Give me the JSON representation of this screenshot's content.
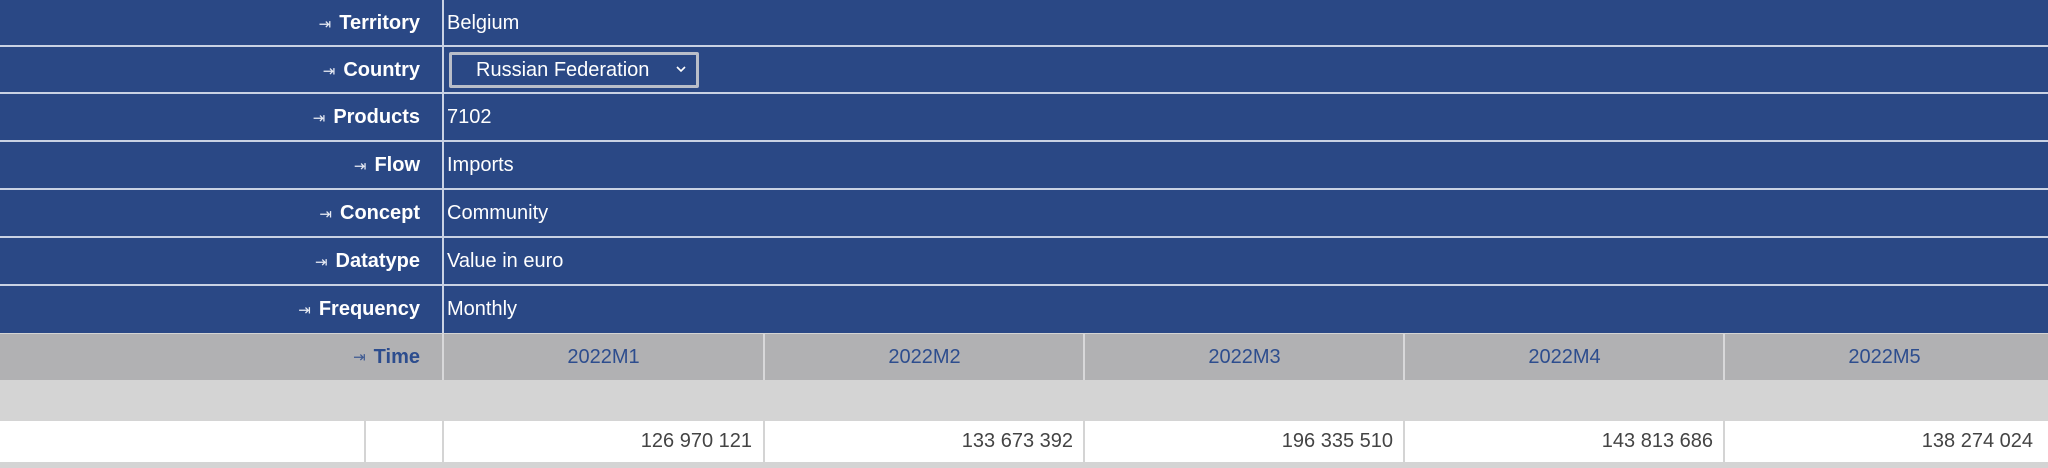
{
  "filters": [
    {
      "label": "Territory",
      "value": "Belgium"
    },
    {
      "label": "Country",
      "value": "Russian Federation",
      "control": "select"
    },
    {
      "label": "Products",
      "value": "7102"
    },
    {
      "label": "Flow",
      "value": "Imports"
    },
    {
      "label": "Concept",
      "value": "Community"
    },
    {
      "label": "Datatype",
      "value": "Value in euro"
    },
    {
      "label": "Frequency",
      "value": "Monthly"
    }
  ],
  "pivot_glyph": "⇥",
  "time": {
    "label": "Time",
    "periods": [
      "2022M1",
      "2022M2",
      "2022M3",
      "2022M4",
      "2022M5"
    ]
  },
  "data_row": {
    "values": [
      "126 970 121",
      "133 673 392",
      "196 335 510",
      "143 813 686",
      "138 274 024"
    ]
  },
  "colors": {
    "filter_bg": "#2a4885",
    "time_bg": "#b1b1b3",
    "time_text": "#2d4d8e"
  },
  "icons": {
    "pivot": "pivot-arrow-icon",
    "dropdown": "chevron-down-icon"
  }
}
